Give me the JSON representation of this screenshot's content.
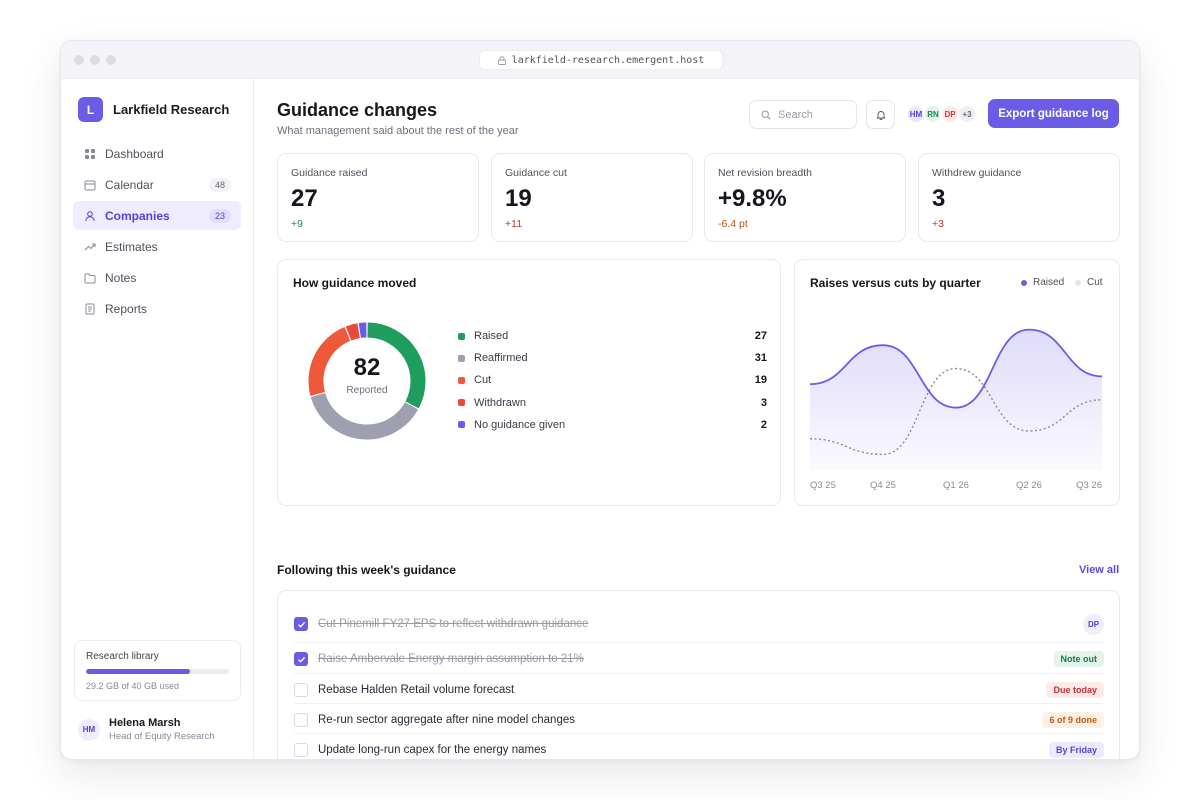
{
  "browser": {
    "url": "larkfield-research.emergent.host"
  },
  "brand": {
    "logo_letter": "L",
    "name": "Larkfield Research"
  },
  "nav": [
    {
      "label": "Dashboard",
      "icon": "grid-icon",
      "count": ""
    },
    {
      "label": "Calendar",
      "icon": "calendar-icon",
      "count": "48"
    },
    {
      "label": "Companies",
      "icon": "person-icon",
      "count": "23",
      "active": true
    },
    {
      "label": "Estimates",
      "icon": "trend-icon",
      "count": ""
    },
    {
      "label": "Notes",
      "icon": "folder-icon",
      "count": ""
    },
    {
      "label": "Reports",
      "icon": "document-icon",
      "count": ""
    }
  ],
  "storage": {
    "title": "Research library",
    "used_text": "29.2 GB of 40 GB used",
    "used_fraction": 0.73
  },
  "user": {
    "initials": "HM",
    "name": "Helena Marsh",
    "role": "Head of Equity Research"
  },
  "header": {
    "title": "Guidance changes",
    "subtitle": "What management said about the rest of the year",
    "search_placeholder": "Search",
    "team": [
      {
        "initials": "HM",
        "bg": "#ebe8fc",
        "fg": "#5443d4"
      },
      {
        "initials": "RN",
        "bg": "#e3f5ea",
        "fg": "#1a8a4c"
      },
      {
        "initials": "DP",
        "bg": "#fde7e7",
        "fg": "#d23b3b"
      },
      {
        "initials": "+3",
        "bg": "#f0f0f4",
        "fg": "#6a6a76"
      }
    ],
    "export_label": "Export guidance log"
  },
  "kpis": [
    {
      "label": "Guidance raised",
      "value": "27",
      "delta": "+9",
      "delta_color": "#1a8a4c"
    },
    {
      "label": "Guidance cut",
      "value": "19",
      "delta": "+11",
      "delta_color": "#c53030"
    },
    {
      "label": "Net revision breadth",
      "value": "+9.8%",
      "delta": "-6.4 pt",
      "delta_color": "#b85410"
    },
    {
      "label": "Withdrew guidance",
      "value": "3",
      "delta": "+3",
      "delta_color": "#c53030"
    }
  ],
  "breakdown": {
    "title": "How guidance moved",
    "total": "82",
    "total_label": "Reported",
    "items": [
      {
        "label": "Raised",
        "value": 27,
        "color": "#1f9d5c"
      },
      {
        "label": "Reaffirmed",
        "value": 31,
        "color": "#9ea0b0"
      },
      {
        "label": "Cut",
        "value": 19,
        "color": "#f0583a"
      },
      {
        "label": "Withdrawn",
        "value": 3,
        "color": "#e84b3c"
      },
      {
        "label": "No guidance given",
        "value": 2,
        "color": "#6b5ce7"
      }
    ]
  },
  "chart_data": {
    "type": "area",
    "title": "Raises versus cuts by quarter",
    "legend": [
      "Raised",
      "Cut"
    ],
    "legend_placement": "top-right",
    "categories": [
      "Q3 25",
      "Q4 25",
      "Q1 26",
      "Q2 26",
      "Q3 26"
    ],
    "series": [
      {
        "name": "Raised",
        "values": [
          0.55,
          0.8,
          0.4,
          0.9,
          0.6
        ],
        "color": "#6b5ce7"
      },
      {
        "name": "Cut",
        "values": [
          0.2,
          0.1,
          0.65,
          0.25,
          0.45
        ],
        "color": "#8a8a96"
      }
    ],
    "ylim": [
      0,
      1
    ],
    "grid": false
  },
  "tasks_section": {
    "title": "Following this week's guidance",
    "view_all": "View all",
    "tasks": [
      {
        "text": "Cut Pinemill FY27 EPS to reflect withdrawn guidance",
        "done": true,
        "badge": "DP",
        "badge_type": "avatar"
      },
      {
        "text": "Raise Ambervale Energy margin assumption to 21%",
        "done": true,
        "badge": "Note out",
        "badge_bg": "#e3f5ea",
        "badge_fg": "#1a7a44"
      },
      {
        "text": "Rebase Halden Retail volume forecast",
        "done": false,
        "badge": "Due today",
        "badge_bg": "#fdeaea",
        "badge_fg": "#c53030"
      },
      {
        "text": "Re-run sector aggregate after nine model changes",
        "done": false,
        "badge": "6 of 9 done",
        "badge_bg": "#fdf0e4",
        "badge_fg": "#c25a12"
      },
      {
        "text": "Update long-run capex for the energy names",
        "done": false,
        "badge": "By Friday",
        "badge_bg": "#ecebfb",
        "badge_fg": "#5443d4"
      }
    ]
  }
}
